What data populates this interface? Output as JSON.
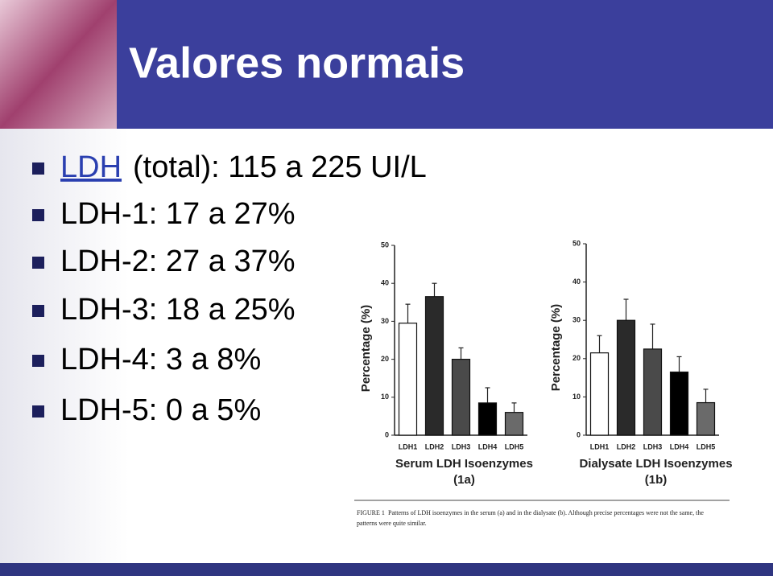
{
  "slide": {
    "title": "Valores normais",
    "bullets": [
      {
        "link": "LDH",
        "text": "(total): 115 a 225 UI/L"
      },
      {
        "text": "LDH-1: 17 a 27%"
      },
      {
        "text": "LDH-2: 27 a 37%"
      },
      {
        "text": "LDH-3: 18 a 25%"
      },
      {
        "text": "LDH-4: 3 a 8%"
      },
      {
        "text": "LDH-5: 0 a 5%"
      }
    ],
    "caption": [
      "FIGURE 1",
      "Patterns of LDH isoenzymes in the serum (a) and in the dialysate (b). Although precise percentages were not the same, the",
      "patterns were quite similar."
    ]
  },
  "chart_data": [
    {
      "type": "bar",
      "title": "Serum LDH Isoenzymes",
      "subtitle": "(1a)",
      "y_label": "Percentage (%)",
      "categories": [
        "LDH1",
        "LDH2",
        "LDH3",
        "LDH4",
        "LDH5"
      ],
      "values": [
        29.5,
        36.5,
        20,
        8.5,
        6
      ],
      "errors": [
        5,
        3.5,
        3,
        4,
        2.5
      ],
      "colors": [
        "#ffffff",
        "#2a2a2a",
        "#4a4a4a",
        "#000000",
        "#6a6a6a"
      ],
      "ylim": [
        0,
        50
      ],
      "yticks": [
        0,
        10,
        20,
        30,
        40,
        50
      ]
    },
    {
      "type": "bar",
      "title": "Dialysate LDH Isoenzymes",
      "subtitle": "(1b)",
      "y_label": "Percentage (%)",
      "categories": [
        "LDH1",
        "LDH2",
        "LDH3",
        "LDH4",
        "LDH5"
      ],
      "values": [
        21.5,
        30,
        22.5,
        16.5,
        8.5
      ],
      "errors": [
        4.5,
        5.5,
        6.5,
        4,
        3.5
      ],
      "colors": [
        "#ffffff",
        "#2a2a2a",
        "#4a4a4a",
        "#000000",
        "#6a6a6a"
      ],
      "ylim": [
        0,
        50
      ],
      "yticks": [
        0,
        10,
        20,
        30,
        40,
        50
      ]
    }
  ]
}
